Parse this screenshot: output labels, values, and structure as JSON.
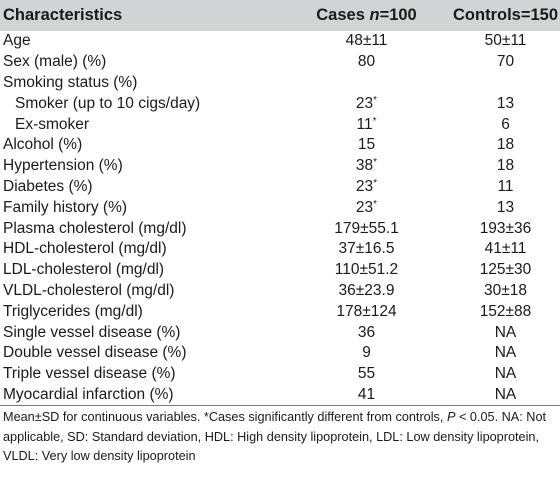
{
  "table": {
    "headers": {
      "characteristics": "Characteristics",
      "cases_prefix": "Cases ",
      "cases_n": "n",
      "cases_suffix": "=100",
      "controls": "Controls=150"
    },
    "rows": [
      {
        "label": "Age",
        "cases": "48±11",
        "controls": "50±11",
        "indent": false
      },
      {
        "label": "Sex (male) (%)",
        "cases": "80",
        "controls": "70",
        "indent": false
      },
      {
        "label": "Smoking status (%)",
        "cases": "",
        "controls": "",
        "indent": false
      },
      {
        "label": "Smoker (up to 10 cigs/day)",
        "cases": "23",
        "cases_mark": "*",
        "controls": "13",
        "indent": true
      },
      {
        "label": "Ex-smoker",
        "cases": "11",
        "cases_mark": "*",
        "controls": "6",
        "indent": true
      },
      {
        "label": "Alcohol (%)",
        "cases": "15",
        "controls": "18",
        "indent": false
      },
      {
        "label": "Hypertension (%)",
        "cases": "38",
        "cases_mark": "*",
        "controls": "18",
        "indent": false
      },
      {
        "label": "Diabetes (%)",
        "cases": "23",
        "cases_mark": "*",
        "controls": "11",
        "indent": false
      },
      {
        "label": "Family history (%)",
        "cases": "23",
        "cases_mark": "*",
        "controls": "13",
        "indent": false
      },
      {
        "label": "Plasma cholesterol (mg/dl)",
        "cases": "179±55.1",
        "controls": "193±36",
        "indent": false
      },
      {
        "label": "HDL-cholesterol (mg/dl)",
        "cases": "37±16.5",
        "controls": "41±11",
        "indent": false
      },
      {
        "label": "LDL-cholesterol (mg/dl)",
        "cases": "110±51.2",
        "controls": "125±30",
        "indent": false
      },
      {
        "label": "VLDL-cholesterol (mg/dl)",
        "cases": "36±23.9",
        "controls": "30±18",
        "indent": false
      },
      {
        "label": "Triglycerides (mg/dl)",
        "cases": "178±124",
        "controls": "152±88",
        "indent": false
      },
      {
        "label": "Single vessel disease (%)",
        "cases": "36",
        "controls": "NA",
        "indent": false
      },
      {
        "label": "Double vessel disease (%)",
        "cases": "9",
        "controls": "NA",
        "indent": false
      },
      {
        "label": "Triple vessel disease (%)",
        "cases": "55",
        "controls": "NA",
        "indent": false
      },
      {
        "label": "Myocardial infarction (%)",
        "cases": "41",
        "controls": "NA",
        "indent": false
      }
    ]
  },
  "footnote": {
    "part1": "Mean±SD for continuous variables. *Cases significantly different from controls, ",
    "p_symbol": "P",
    "part2": " < 0.05. NA: Not applicable, SD: Standard deviation, HDL: High density lipoprotein, LDL: Low density lipoprotein, VLDL: Very low density lipoprotein"
  },
  "colors": {
    "header_background": "#d1d3d4",
    "rule": "#7a7a7a"
  }
}
